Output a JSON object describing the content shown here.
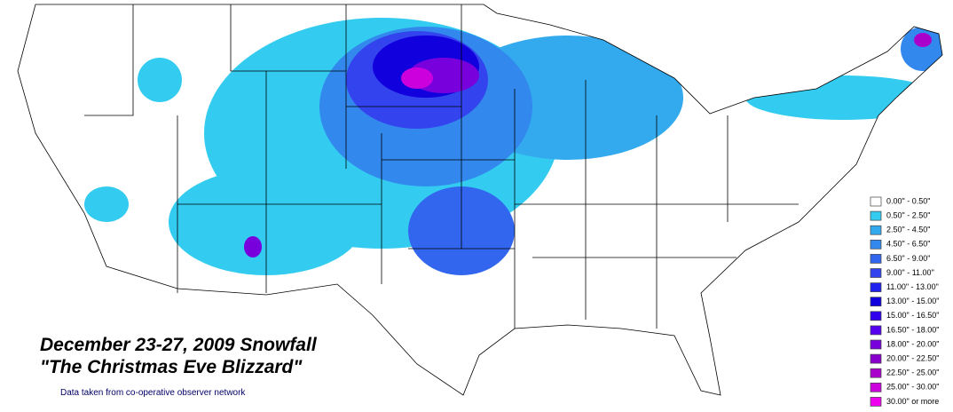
{
  "title": "December 23-27, 2009 Snowfall",
  "subtitle": "\"The Christmas Eve Blizzard\"",
  "source": "Data taken from co-operative observer network",
  "legend": [
    {
      "label": "0.00\" - 0.50\"",
      "color": "#ffffff"
    },
    {
      "label": "0.50\" - 2.50\"",
      "color": "#33ccf0"
    },
    {
      "label": "2.50\" - 4.50\"",
      "color": "#33aaee"
    },
    {
      "label": "4.50\" - 6.50\"",
      "color": "#3388ee"
    },
    {
      "label": "6.50\" - 9.00\"",
      "color": "#3366ee"
    },
    {
      "label": "9.00\" - 11.00\"",
      "color": "#3344ee"
    },
    {
      "label": "11.00\" - 13.00\"",
      "color": "#2222ee"
    },
    {
      "label": "13.00\" - 15.00\"",
      "color": "#1100dd"
    },
    {
      "label": "15.00\" - 16.50\"",
      "color": "#3300ee"
    },
    {
      "label": "16.50\" - 18.00\"",
      "color": "#5500ee"
    },
    {
      "label": "18.00\" - 20.00\"",
      "color": "#7700dd"
    },
    {
      "label": "20.00\" - 22.50\"",
      "color": "#8800cc"
    },
    {
      "label": "22.50\" - 25.00\"",
      "color": "#aa00cc"
    },
    {
      "label": "25.00\" - 30.00\"",
      "color": "#cc00dd"
    },
    {
      "label": "30.00\" or more",
      "color": "#ee00ee"
    }
  ]
}
